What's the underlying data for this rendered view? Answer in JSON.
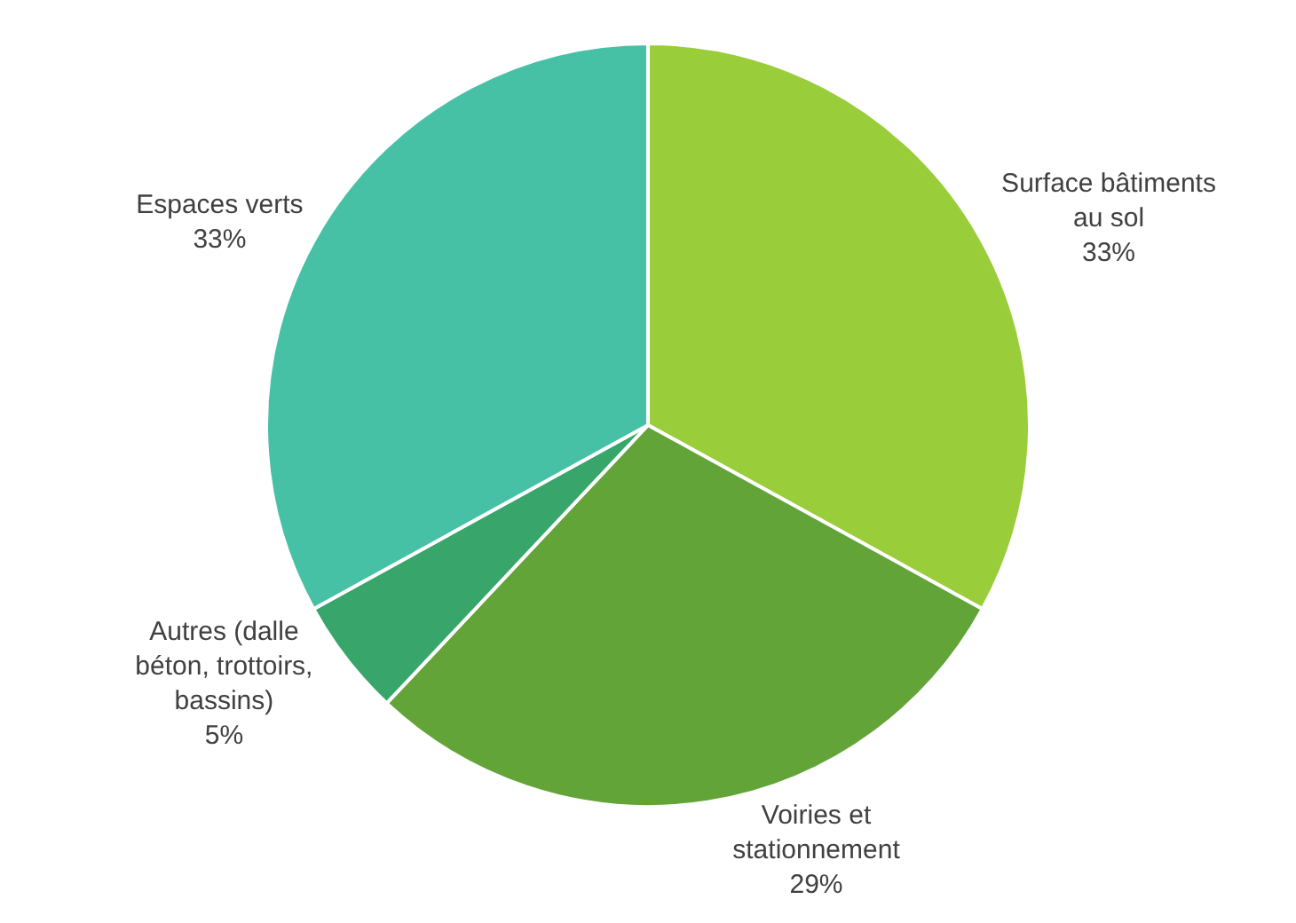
{
  "chart_data": {
    "type": "pie",
    "categories": [
      "Surface bâtiments au sol",
      "Voiries et stationnement",
      "Autres (dalle béton, trottoirs, bassins)",
      "Espaces verts"
    ],
    "values": [
      33,
      29,
      5,
      33
    ],
    "value_labels": [
      "33%",
      "29%",
      "5%",
      "33%"
    ],
    "colors": [
      "#9acd3a",
      "#62a438",
      "#38a66a",
      "#47c1a5"
    ],
    "legend": false
  }
}
